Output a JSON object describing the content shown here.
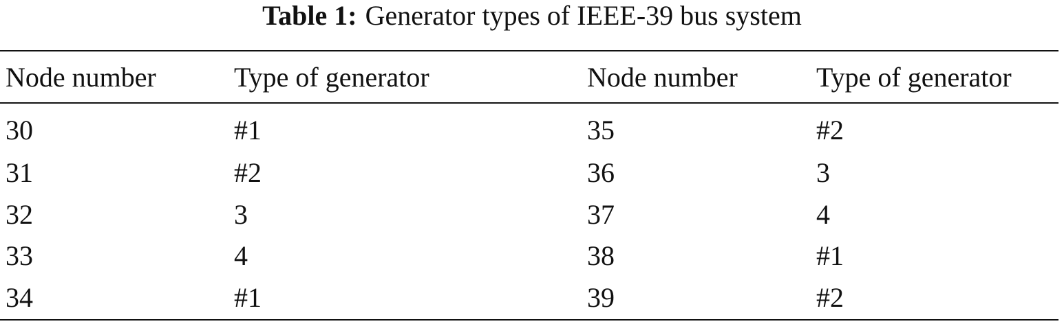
{
  "caption": {
    "label": "Table 1:",
    "text": "Generator types of IEEE-39 bus system"
  },
  "table": {
    "header": [
      "Node number",
      "Type of generator",
      "Node number",
      "Type of generator"
    ],
    "rows": [
      [
        30,
        "#1",
        35,
        "#2"
      ],
      [
        31,
        "#2",
        36,
        3
      ],
      [
        32,
        3,
        37,
        4
      ],
      [
        33,
        4,
        38,
        "#1"
      ],
      [
        34,
        "#1",
        39,
        "#2"
      ]
    ]
  }
}
